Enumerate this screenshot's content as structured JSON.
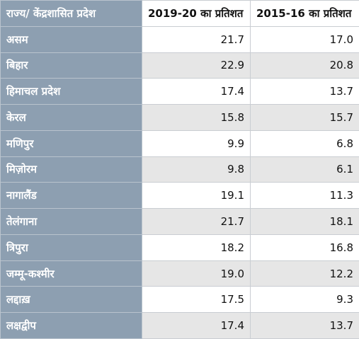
{
  "table": {
    "headers": {
      "state": "राज्य/ केंद्रशासित प्रदेश",
      "y2019": "2019-20 का प्रतिशत",
      "y2015": "2015-16 का प्रतिशत"
    },
    "rows": [
      {
        "state": "असम",
        "v2019": "21.7",
        "v2015": "17.0"
      },
      {
        "state": "बिहार",
        "v2019": "22.9",
        "v2015": "20.8"
      },
      {
        "state": "हिमाचल प्रदेश",
        "v2019": "17.4",
        "v2015": "13.7"
      },
      {
        "state": "केरल",
        "v2019": "15.8",
        "v2015": "15.7"
      },
      {
        "state": "मणिपुर",
        "v2019": "9.9",
        "v2015": "6.8"
      },
      {
        "state": "मिज़ोरम",
        "v2019": "9.8",
        "v2015": "6.1"
      },
      {
        "state": "नागालैंड",
        "v2019": "19.1",
        "v2015": "11.3"
      },
      {
        "state": "तेलंगाना",
        "v2019": "21.7",
        "v2015": "18.1"
      },
      {
        "state": "त्रिपुरा",
        "v2019": "18.2",
        "v2015": "16.8"
      },
      {
        "state": "जम्मू-कश्मीर",
        "v2019": "19.0",
        "v2015": "12.2"
      },
      {
        "state": "लद्दाख़",
        "v2019": "17.5",
        "v2015": "9.3"
      },
      {
        "state": "लक्षद्वीप",
        "v2019": "17.4",
        "v2015": "13.7"
      }
    ]
  }
}
